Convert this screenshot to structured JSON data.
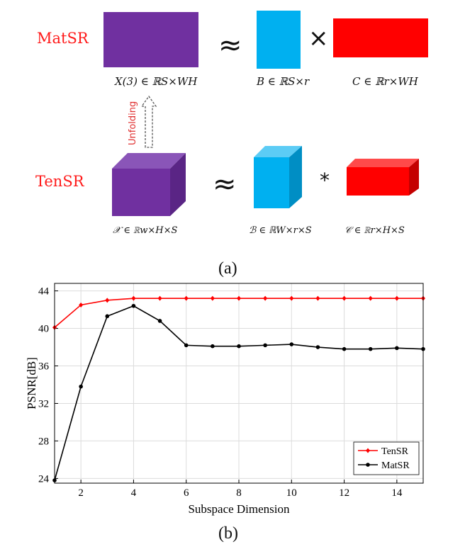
{
  "panel_a": {
    "matsr_label": "MatSR",
    "tensr_label": "TenSR",
    "approx": "≈",
    "times": "×",
    "star": "*",
    "unfold_label": "Unfolding",
    "x3_label": "X(3) ∈ ℝS×WH",
    "b_label": "B ∈ ℝS×r",
    "c_label": "C ∈ ℝr×WH",
    "xt_label": "𝒳 ∈ ℝw×H×S",
    "bt_label": "ℬ ∈ ℝW×r×S",
    "ct_label": "𝒞 ∈ ℝr×H×S",
    "caption": "(a)",
    "colors": {
      "purple": "#7030a0",
      "blue": "#00b0f0",
      "red": "#ff0000"
    }
  },
  "panel_b": {
    "caption": "(b)"
  },
  "chart_data": {
    "type": "line",
    "xlabel": "Subspace Dimension",
    "ylabel": "PSNR[dB]",
    "xlim": [
      1,
      15
    ],
    "ylim": [
      23.5,
      44.8
    ],
    "xticks": [
      2,
      4,
      6,
      8,
      10,
      12,
      14
    ],
    "yticks": [
      24,
      28,
      32,
      36,
      40,
      44
    ],
    "x": [
      1,
      2,
      3,
      4,
      5,
      6,
      7,
      8,
      9,
      10,
      11,
      12,
      13,
      14,
      15
    ],
    "grid": true,
    "legend_position": "bottom-right",
    "series": [
      {
        "name": "TenSR",
        "color": "#ff0000",
        "marker": "diamond",
        "values": [
          40.1,
          42.5,
          43.0,
          43.2,
          43.2,
          43.2,
          43.2,
          43.2,
          43.2,
          43.2,
          43.2,
          43.2,
          43.2,
          43.2,
          43.2
        ]
      },
      {
        "name": "MatSR",
        "color": "#000000",
        "marker": "circle",
        "values": [
          23.8,
          33.8,
          41.3,
          42.4,
          40.8,
          38.2,
          38.1,
          38.1,
          38.2,
          38.3,
          38.0,
          37.8,
          37.8,
          37.9,
          37.8
        ]
      }
    ]
  }
}
